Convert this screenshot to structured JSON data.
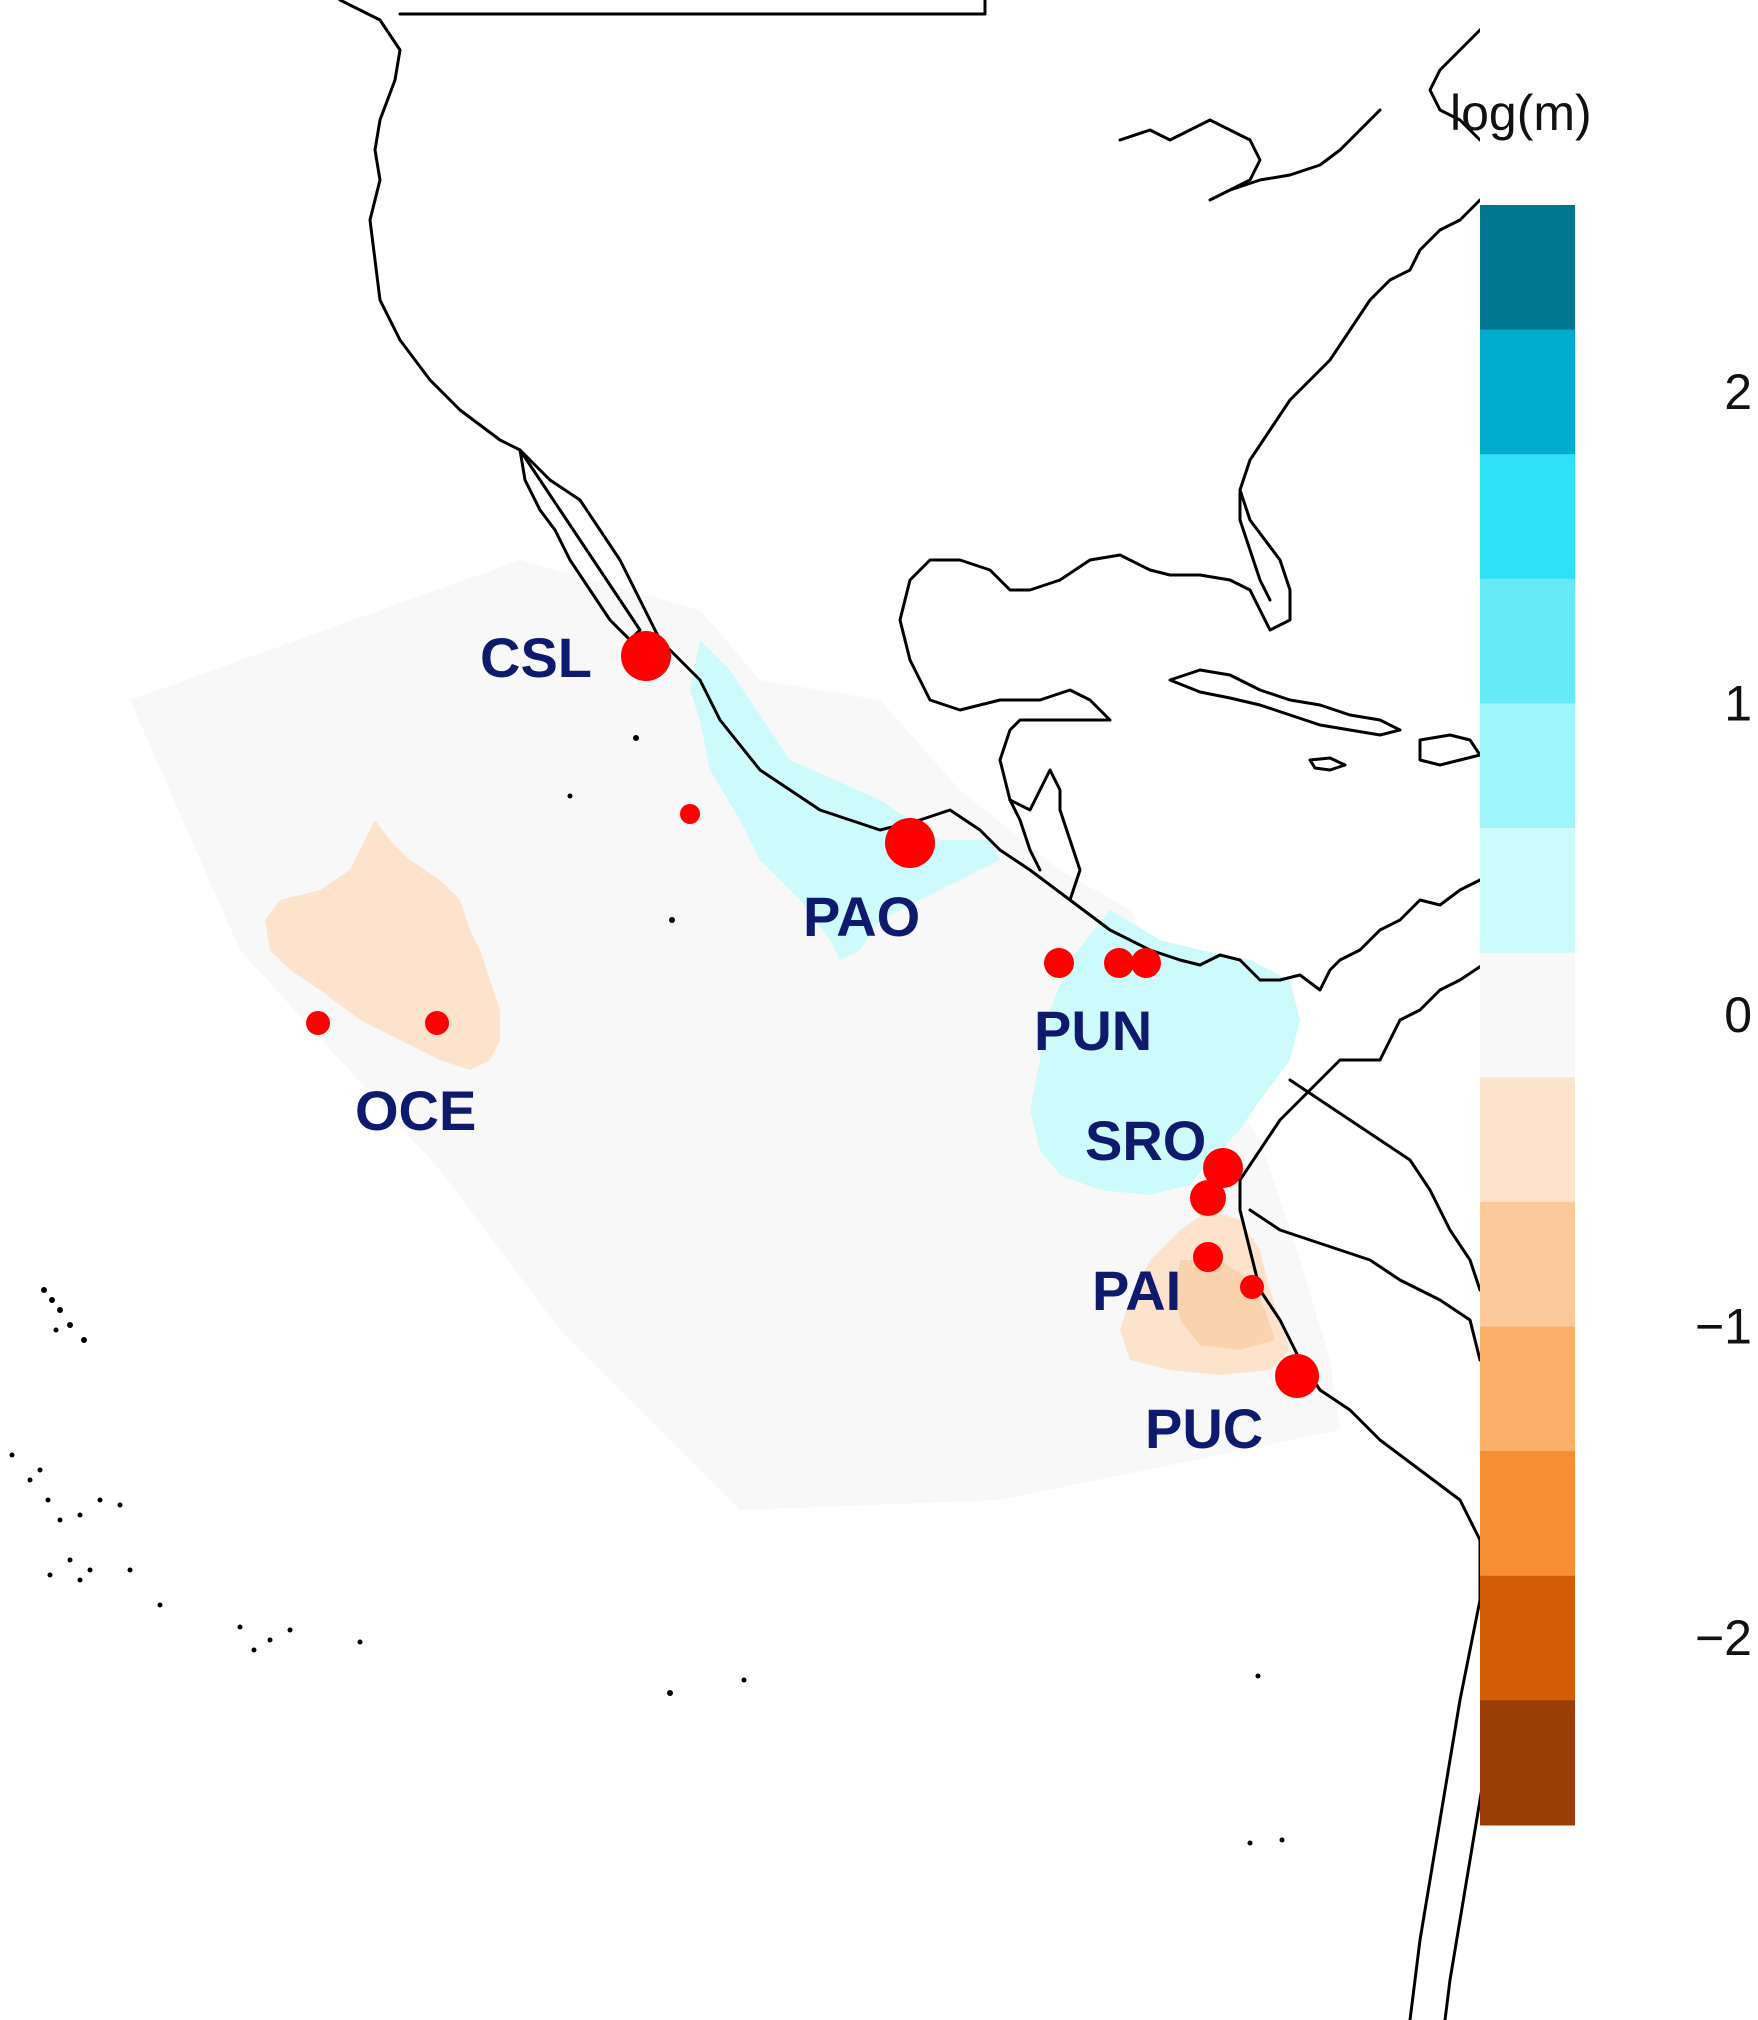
{
  "legend": {
    "title": "log(m)",
    "ticks": [
      {
        "value": 2,
        "label": "2"
      },
      {
        "value": 1,
        "label": "1"
      },
      {
        "value": 0,
        "label": "0"
      },
      {
        "value": -1,
        "label": "−1"
      },
      {
        "value": -2,
        "label": "−2"
      }
    ],
    "range": [
      -2.6,
      2.6
    ],
    "bins": [
      {
        "from": 2.2,
        "to": 2.6,
        "color": "#00778f"
      },
      {
        "from": 1.8,
        "to": 2.2,
        "color": "#00acce"
      },
      {
        "from": 1.4,
        "to": 1.8,
        "color": "#30e0f8"
      },
      {
        "from": 1.0,
        "to": 1.4,
        "color": "#66eaf8"
      },
      {
        "from": 0.6,
        "to": 1.0,
        "color": "#9ef5fa"
      },
      {
        "from": 0.2,
        "to": 0.6,
        "color": "#cdfafb"
      },
      {
        "from": -0.2,
        "to": 0.2,
        "color": "#f8f8f8"
      },
      {
        "from": -0.6,
        "to": -0.2,
        "color": "#fde3cc"
      },
      {
        "from": -1.0,
        "to": -0.6,
        "color": "#fbc99a"
      },
      {
        "from": -1.4,
        "to": -1.0,
        "color": "#fbaf68"
      },
      {
        "from": -1.8,
        "to": -1.4,
        "color": "#f88e34"
      },
      {
        "from": -2.2,
        "to": -1.8,
        "color": "#d35c06"
      },
      {
        "from": -2.6,
        "to": -2.2,
        "color": "#9a3c05"
      }
    ]
  },
  "sites": [
    {
      "code": "CSL",
      "label": "CSL"
    },
    {
      "code": "PAO",
      "label": "PAO"
    },
    {
      "code": "PUN",
      "label": "PUN"
    },
    {
      "code": "OCE",
      "label": "OCE"
    },
    {
      "code": "SRO",
      "label": "SRO"
    },
    {
      "code": "PAI",
      "label": "PAI"
    },
    {
      "code": "PUC",
      "label": "PUC"
    }
  ],
  "colors": {
    "sample_point": "#ff0000",
    "site_label": "#0d1a6e",
    "coastline": "#000000",
    "surface_neutral": "#f8f8f8",
    "surface_high": "#cdfafb",
    "surface_low_light": "#fde3cc",
    "surface_low": "#fbd2ae"
  }
}
